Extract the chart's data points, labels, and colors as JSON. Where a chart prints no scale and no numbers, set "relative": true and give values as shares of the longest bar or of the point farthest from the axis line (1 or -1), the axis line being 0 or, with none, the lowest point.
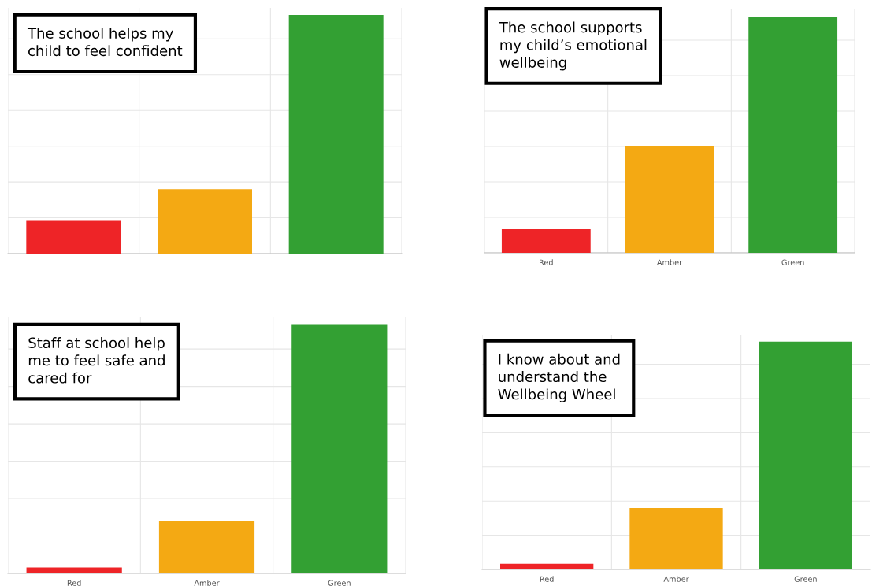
{
  "chart_data": [
    {
      "type": "bar",
      "title": "The school helps my\nchild to feel confident",
      "categories": [
        null,
        null,
        null
      ],
      "values": [
        0.14,
        0.27,
        1
      ],
      "colors": [
        "#ee2427",
        "#f4a913",
        "#33a033"
      ],
      "relative": true,
      "grid": true,
      "legend": false
    },
    {
      "type": "bar",
      "title": "The school supports\nmy child’s emotional\nwellbeing",
      "categories": [
        "Red",
        "Amber",
        "Green"
      ],
      "values": [
        0.1,
        0.45,
        1
      ],
      "colors": [
        "#ee2427",
        "#f4a913",
        "#33a033"
      ],
      "relative": true,
      "grid": true,
      "legend": false
    },
    {
      "type": "bar",
      "title": "Staff at school help\nme to feel safe and\ncared for",
      "categories": [
        "Red",
        "Amber",
        "Green"
      ],
      "values": [
        0.024,
        0.21,
        1
      ],
      "colors": [
        "#ee2427",
        "#f4a913",
        "#33a033"
      ],
      "relative": true,
      "grid": true,
      "legend": false
    },
    {
      "type": "bar",
      "title": "I know about and\nunderstand the\nWellbeing Wheel",
      "categories": [
        "Red",
        "Amber",
        "Green"
      ],
      "values": [
        0.025,
        0.27,
        1
      ],
      "colors": [
        "#ee2427",
        "#f4a913",
        "#33a033"
      ],
      "relative": true,
      "grid": true,
      "legend": false
    }
  ]
}
